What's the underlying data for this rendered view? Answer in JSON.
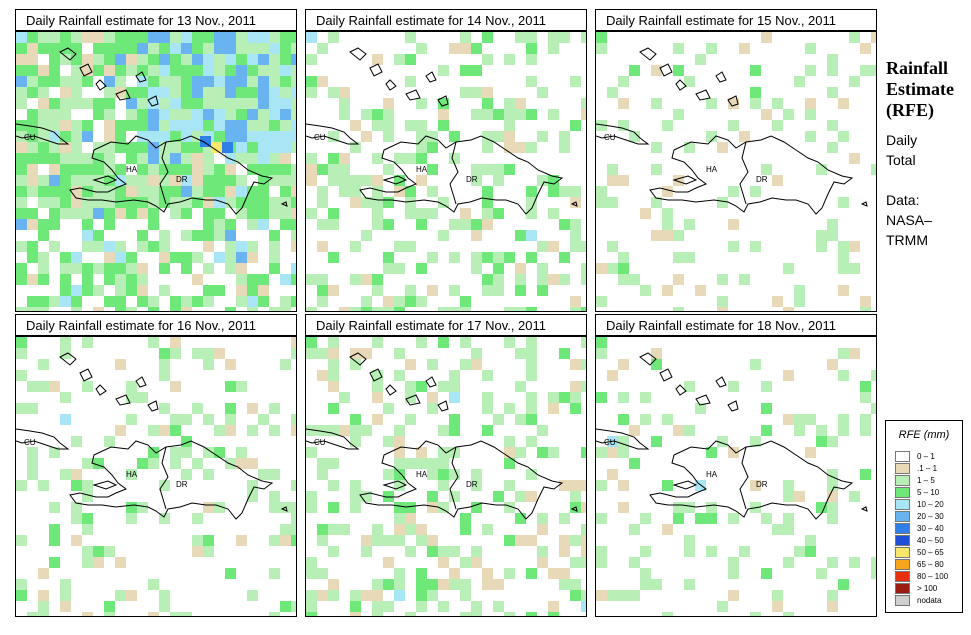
{
  "panels": [
    {
      "title": "Daily Rainfall estimate for  13 Nov., 2011"
    },
    {
      "title": "Daily Rainfall estimate for  14 Nov., 2011"
    },
    {
      "title": "Daily Rainfall estimate for  15 Nov., 2011"
    },
    {
      "title": "Daily Rainfall estimate for  16 Nov., 2011"
    },
    {
      "title": "Daily Rainfall estimate for  17 Nov., 2011"
    },
    {
      "title": "Daily Rainfall estimate for  18 Nov., 2011"
    }
  ],
  "map_labels": {
    "cu": "CU",
    "ha": "HA",
    "dr": "DR"
  },
  "side": {
    "title_1": "Rainfall",
    "title_2": "Estimate",
    "title_3": "(RFE)",
    "daily": "Daily",
    "total": "Total",
    "data": "Data:",
    "source_1": "NASA–",
    "source_2": "TRMM"
  },
  "legend": {
    "title": "RFE (mm)",
    "items": [
      {
        "label": "0 – 1",
        "color": "#ffffff"
      },
      {
        "label": ".1 – 1",
        "color": "#e8d9b8"
      },
      {
        "label": "1 – 5",
        "color": "#b7efb7"
      },
      {
        "label": "5 – 10",
        "color": "#6fe87a"
      },
      {
        "label": "10 – 20",
        "color": "#a8e6f5"
      },
      {
        "label": "20 – 30",
        "color": "#69b4f0"
      },
      {
        "label": "30 – 40",
        "color": "#2e7fe8"
      },
      {
        "label": "40 – 50",
        "color": "#1f4fd6"
      },
      {
        "label": "50 – 65",
        "color": "#f7e76a"
      },
      {
        "label": "65 – 80",
        "color": "#f7a51c"
      },
      {
        "label": "80 – 100",
        "color": "#e8300f"
      },
      {
        "label": "> 100",
        "color": "#9b1c10"
      },
      {
        "label": "nodata",
        "color": "#cfcfcf"
      }
    ]
  }
}
